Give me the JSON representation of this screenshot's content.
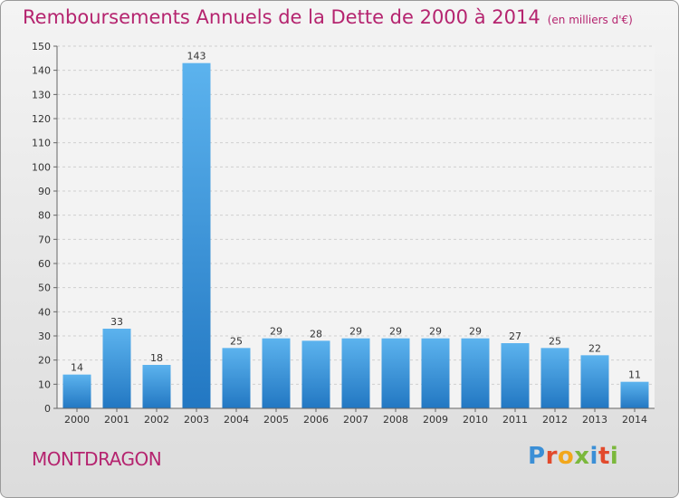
{
  "title": "Remboursements Annuels de la Dette de 2000 à 2014",
  "subtitle": "(en milliers d'€)",
  "commune": "MONTDRAGON",
  "logo": {
    "text": "Proxiti",
    "letters": [
      {
        "ch": "P",
        "color": "#3b8fd6"
      },
      {
        "ch": "r",
        "color": "#e24a2c"
      },
      {
        "ch": "o",
        "color": "#f2a71b"
      },
      {
        "ch": "x",
        "color": "#7bb83c"
      },
      {
        "ch": "i",
        "color": "#3b8fd6"
      },
      {
        "ch": "t",
        "color": "#e24a2c"
      },
      {
        "ch": "i",
        "color": "#7bb83c"
      }
    ]
  },
  "colors": {
    "accent": "#b5246f",
    "bar_top": "#5cb3ee",
    "bar_bottom": "#2277c2"
  },
  "chart_data": {
    "type": "bar",
    "categories": [
      "2000",
      "2001",
      "2002",
      "2003",
      "2004",
      "2005",
      "2006",
      "2007",
      "2008",
      "2009",
      "2010",
      "2011",
      "2012",
      "2013",
      "2014"
    ],
    "values": [
      14,
      33,
      18,
      143,
      25,
      29,
      28,
      29,
      29,
      29,
      29,
      27,
      25,
      22,
      11
    ],
    "ylim": [
      0,
      150
    ],
    "yticks": [
      0,
      10,
      20,
      30,
      40,
      50,
      60,
      70,
      80,
      90,
      100,
      110,
      120,
      130,
      140,
      150
    ],
    "grid": true
  }
}
